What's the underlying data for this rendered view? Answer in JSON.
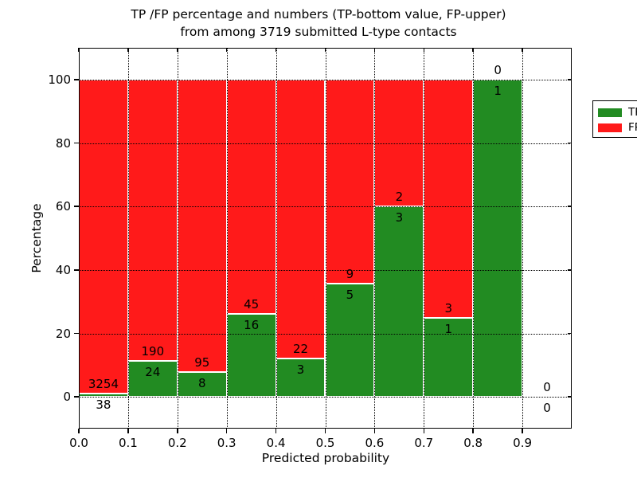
{
  "title": {
    "line1": "TP /FP percentage and numbers (TP-bottom value, FP-upper)",
    "line2": "from among 3719 submitted L-type contacts"
  },
  "chart_data": {
    "type": "bar",
    "stacked": true,
    "normalized_to_percent": true,
    "xlabel": "Predicted probability",
    "ylabel": "Percentage",
    "xlim": [
      0.0,
      1.0
    ],
    "ylim": [
      -10,
      110
    ],
    "x_tick_labels": [
      "0.0",
      "0.1",
      "0.2",
      "0.3",
      "0.4",
      "0.5",
      "0.6",
      "0.7",
      "0.8",
      "0.9"
    ],
    "y_ticks": [
      0,
      20,
      40,
      60,
      80,
      100
    ],
    "grid": "dotted black, horizontal and vertical, drawn over bars",
    "legend_position": "upper right",
    "legend": [
      {
        "label": "TP",
        "color": "#228b22"
      },
      {
        "label": "FP",
        "color": "#ff1a1a"
      }
    ],
    "colors": {
      "tp": "#228b22",
      "fp": "#ff1a1a",
      "bar_edge": "#ffffff"
    },
    "annotation_note": "TP count below segment boundary, FP count above segment boundary",
    "bins": [
      {
        "range": [
          0.0,
          0.1
        ],
        "tp": 38,
        "fp": 3254
      },
      {
        "range": [
          0.1,
          0.2
        ],
        "tp": 24,
        "fp": 190
      },
      {
        "range": [
          0.2,
          0.3
        ],
        "tp": 8,
        "fp": 95
      },
      {
        "range": [
          0.3,
          0.4
        ],
        "tp": 16,
        "fp": 45
      },
      {
        "range": [
          0.4,
          0.5
        ],
        "tp": 3,
        "fp": 22
      },
      {
        "range": [
          0.5,
          0.6
        ],
        "tp": 5,
        "fp": 9
      },
      {
        "range": [
          0.6,
          0.7
        ],
        "tp": 3,
        "fp": 2
      },
      {
        "range": [
          0.7,
          0.8
        ],
        "tp": 1,
        "fp": 3
      },
      {
        "range": [
          0.8,
          0.9
        ],
        "tp": 1,
        "fp": 0
      },
      {
        "range": [
          0.9,
          1.0
        ],
        "tp": 0,
        "fp": 0
      }
    ]
  }
}
